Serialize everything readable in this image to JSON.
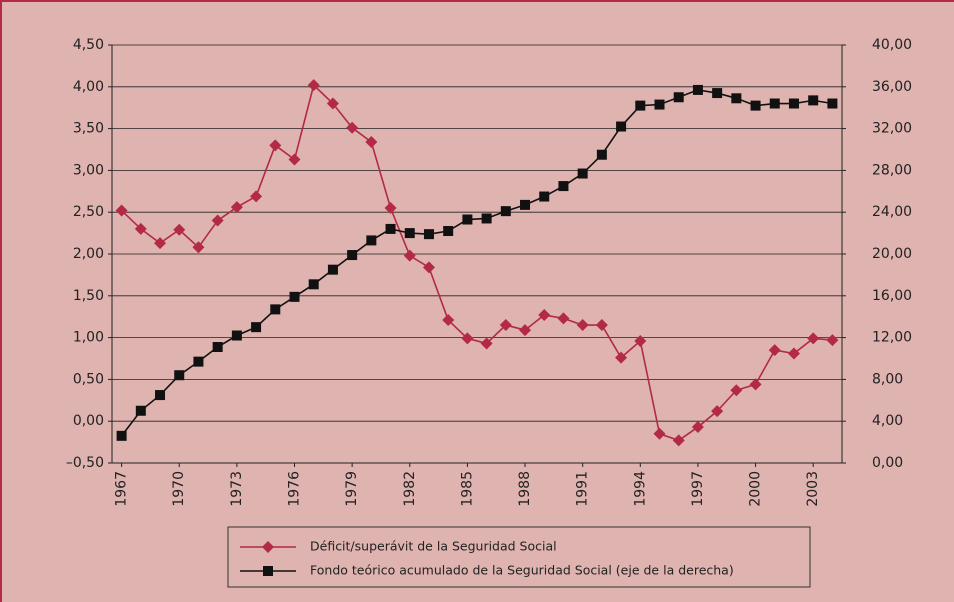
{
  "chart_data": {
    "type": "line",
    "x": [
      1967,
      1968,
      1969,
      1970,
      1971,
      1972,
      1973,
      1974,
      1975,
      1976,
      1977,
      1978,
      1979,
      1980,
      1981,
      1982,
      1983,
      1984,
      1985,
      1986,
      1987,
      1988,
      1989,
      1990,
      1991,
      1992,
      1993,
      1994,
      1995,
      1996,
      1997,
      1998,
      1999,
      2000,
      2001,
      2002,
      2003,
      2004
    ],
    "xlim": [
      1966.5,
      2004.5
    ],
    "xticks": [
      1967,
      1970,
      1973,
      1976,
      1979,
      1982,
      1985,
      1988,
      1991,
      1994,
      1997,
      2000,
      2003
    ],
    "ylim": [
      -0.5,
      4.5
    ],
    "yticks": [
      {
        "value": -0.5,
        "label": "–0,50"
      },
      {
        "value": 0,
        "label": "0,00"
      },
      {
        "value": 0.5,
        "label": "0,50"
      },
      {
        "value": 1,
        "label": "1,00"
      },
      {
        "value": 1.5,
        "label": "1,50"
      },
      {
        "value": 2,
        "label": "2,00"
      },
      {
        "value": 2.5,
        "label": "2,50"
      },
      {
        "value": 3,
        "label": "3,00"
      },
      {
        "value": 3.5,
        "label": "3,50"
      },
      {
        "value": 4,
        "label": "4,00"
      },
      {
        "value": 4.5,
        "label": "4,50"
      }
    ],
    "y2lim": [
      0,
      40
    ],
    "y2ticks": [
      {
        "value": 0,
        "label": "0,00"
      },
      {
        "value": 4,
        "label": "4,00"
      },
      {
        "value": 8,
        "label": "8,00"
      },
      {
        "value": 12,
        "label": "12,00"
      },
      {
        "value": 16,
        "label": "16,00"
      },
      {
        "value": 20,
        "label": "20,00"
      },
      {
        "value": 24,
        "label": "24,00"
      },
      {
        "value": 28,
        "label": "28,00"
      },
      {
        "value": 32,
        "label": "32,00"
      },
      {
        "value": 36,
        "label": "36,00"
      },
      {
        "value": 40,
        "label": "40,00"
      }
    ],
    "grid": true,
    "series": [
      {
        "name": "Déficit/superávit de la Seguridad Social",
        "color": "#b22a45",
        "marker": "diamond",
        "values": [
          2.52,
          2.3,
          2.13,
          2.29,
          2.08,
          2.4,
          2.56,
          2.69,
          3.3,
          3.13,
          4.02,
          3.8,
          3.51,
          3.34,
          2.55,
          1.98,
          1.84,
          1.21,
          0.99,
          0.93,
          1.15,
          1.09,
          1.27,
          1.23,
          1.15,
          1.15,
          0.76,
          0.96,
          -0.15,
          -0.23,
          -0.07,
          0.12,
          0.37,
          0.44,
          0.85,
          0.81,
          0.99,
          0.97
        ]
      },
      {
        "name": "Fondo teórico acumulado de la Seguridad Social (eje de la derecha)",
        "color": "#111111",
        "marker": "square",
        "axis": "y2",
        "values": [
          2.6,
          5.0,
          6.5,
          8.4,
          9.7,
          11.1,
          12.2,
          13.0,
          14.7,
          15.9,
          17.1,
          18.5,
          19.9,
          21.3,
          22.4,
          22.0,
          21.9,
          22.2,
          23.3,
          23.4,
          24.1,
          24.7,
          25.5,
          26.5,
          27.7,
          29.5,
          32.2,
          34.2,
          34.3,
          35.0,
          35.7,
          35.4,
          34.9,
          34.2,
          34.4,
          34.4,
          34.7,
          34.4
        ]
      }
    ]
  }
}
